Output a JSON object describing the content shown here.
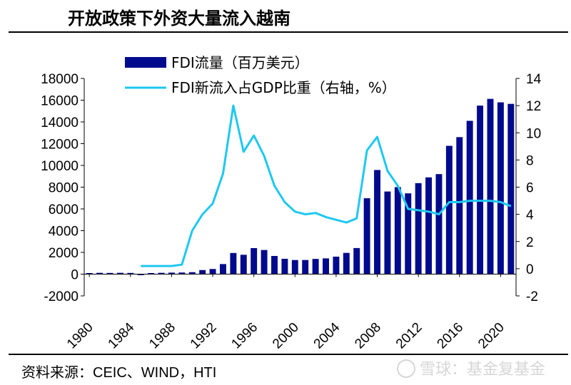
{
  "header": {
    "title": "开放政策下外资大量流入越南"
  },
  "footer": {
    "source": "资料来源：CEIC、WIND，HTI",
    "watermark": "雪球：基金复基金"
  },
  "colors": {
    "bars": "#000a8c",
    "line": "#1ec8f0",
    "axis": "#000000"
  },
  "chart_data": {
    "type": "bar",
    "title": "",
    "legend": {
      "placement": "top-left",
      "bar_label": "FDI流量（百万美元）",
      "line_label": "FDI新流入占GDP比重（右轴，%）"
    },
    "x": [
      1980,
      1981,
      1982,
      1983,
      1984,
      1985,
      1986,
      1987,
      1988,
      1989,
      1990,
      1991,
      1992,
      1993,
      1994,
      1995,
      1996,
      1997,
      1998,
      1999,
      2000,
      2001,
      2002,
      2003,
      2004,
      2005,
      2006,
      2007,
      2008,
      2009,
      2010,
      2011,
      2012,
      2013,
      2014,
      2015,
      2016,
      2017,
      2018,
      2019,
      2020,
      2021
    ],
    "x_tick_labels": [
      "1980",
      "1984",
      "1988",
      "1992",
      "1996",
      "2000",
      "2004",
      "2008",
      "2012",
      "2016",
      "2020"
    ],
    "series": [
      {
        "name": "FDI流量（百万美元）",
        "type": "bar",
        "axis": "left",
        "values": [
          100,
          120,
          110,
          120,
          110,
          -100,
          100,
          120,
          140,
          150,
          180,
          375,
          474,
          926,
          1944,
          1780,
          2395,
          2220,
          1671,
          1412,
          1298,
          1300,
          1400,
          1450,
          1610,
          1954,
          2400,
          6981,
          9579,
          7600,
          8000,
          7430,
          8368,
          8900,
          9200,
          11800,
          12600,
          14100,
          15500,
          16120,
          15800,
          15660
        ]
      },
      {
        "name": "FDI新流入占GDP比重（右轴，%）",
        "type": "line",
        "axis": "right",
        "values": [
          null,
          null,
          null,
          null,
          null,
          0.2,
          0.2,
          0.2,
          0.2,
          0.3,
          2.8,
          4.0,
          4.8,
          7.0,
          12.0,
          8.6,
          9.8,
          8.3,
          6.1,
          4.9,
          4.2,
          4.0,
          4.1,
          3.8,
          3.6,
          3.4,
          3.7,
          8.7,
          9.7,
          7.2,
          6.1,
          4.4,
          4.3,
          4.2,
          4.0,
          4.9,
          4.9,
          5.0,
          5.0,
          5.0,
          4.9,
          4.6
        ]
      }
    ],
    "y_left": {
      "min": -2000,
      "max": 18000,
      "ticks": [
        -2000,
        0,
        2000,
        4000,
        6000,
        8000,
        10000,
        12000,
        14000,
        16000,
        18000
      ]
    },
    "y_right": {
      "min": -2,
      "max": 14,
      "ticks": [
        -2,
        0,
        2,
        4,
        6,
        8,
        10,
        12,
        14
      ]
    },
    "grid": false
  }
}
